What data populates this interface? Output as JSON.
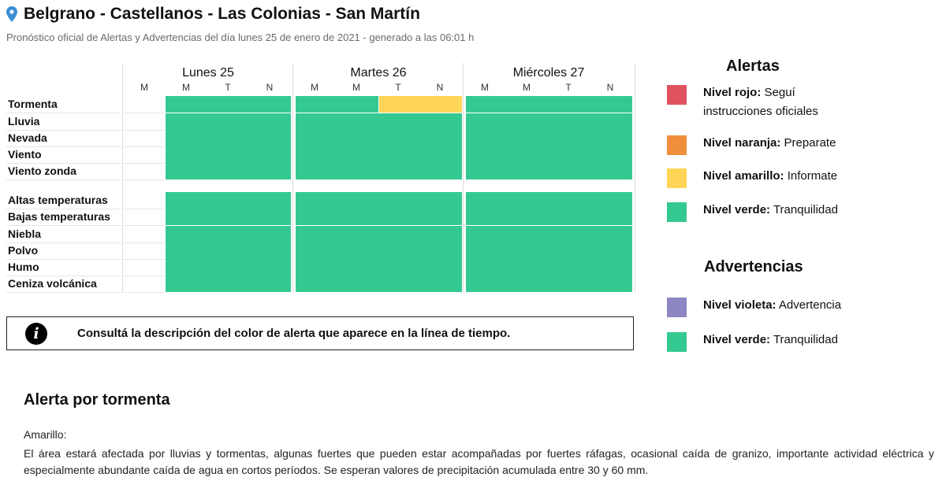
{
  "header": {
    "title": "Belgrano - Castellanos - Las Colonias - San Martín",
    "subtitle": "Pronóstico oficial de Alertas y Advertencias del día lunes 25 de enero de 2021 - generado a las 06:01 h"
  },
  "grid": {
    "days": [
      {
        "label": "Lunes 25",
        "periods": [
          "M",
          "M",
          "T",
          "N"
        ]
      },
      {
        "label": "Martes 26",
        "periods": [
          "M",
          "M",
          "T",
          "N"
        ]
      },
      {
        "label": "Miércoles 27",
        "periods": [
          "M",
          "M",
          "T",
          "N"
        ]
      }
    ],
    "rows": [
      {
        "label": "Tormenta",
        "cells": [
          "none",
          "green",
          "green",
          "green",
          "green",
          "green",
          "yellow",
          "yellow",
          "green",
          "green",
          "green",
          "green"
        ]
      },
      {
        "label": "Lluvia",
        "cells": [
          "none",
          "green",
          "green",
          "green",
          "green",
          "green",
          "green",
          "green",
          "green",
          "green",
          "green",
          "green"
        ]
      },
      {
        "label": "Nevada",
        "cells": [
          "none",
          "green",
          "green",
          "green",
          "green",
          "green",
          "green",
          "green",
          "green",
          "green",
          "green",
          "green"
        ]
      },
      {
        "label": "Viento",
        "cells": [
          "none",
          "green",
          "green",
          "green",
          "green",
          "green",
          "green",
          "green",
          "green",
          "green",
          "green",
          "green"
        ]
      },
      {
        "label": "Viento zonda",
        "cells": [
          "none",
          "green",
          "green",
          "green",
          "green",
          "green",
          "green",
          "green",
          "green",
          "green",
          "green",
          "green"
        ]
      },
      {
        "label": "Altas temperaturas",
        "cells": [
          "none",
          "green",
          "green",
          "green",
          "green",
          "green",
          "green",
          "green",
          "green",
          "green",
          "green",
          "green"
        ]
      },
      {
        "label": "Bajas temperaturas",
        "cells": [
          "none",
          "green",
          "green",
          "green",
          "green",
          "green",
          "green",
          "green",
          "green",
          "green",
          "green",
          "green"
        ]
      },
      {
        "label": "Niebla",
        "cells": [
          "none",
          "green",
          "green",
          "green",
          "green",
          "green",
          "green",
          "green",
          "green",
          "green",
          "green",
          "green"
        ]
      },
      {
        "label": "Polvo",
        "cells": [
          "none",
          "green",
          "green",
          "green",
          "green",
          "green",
          "green",
          "green",
          "green",
          "green",
          "green",
          "green"
        ]
      },
      {
        "label": "Humo",
        "cells": [
          "none",
          "green",
          "green",
          "green",
          "green",
          "green",
          "green",
          "green",
          "green",
          "green",
          "green",
          "green"
        ]
      },
      {
        "label": "Ceniza volcánica",
        "cells": [
          "none",
          "green",
          "green",
          "green",
          "green",
          "green",
          "green",
          "green",
          "green",
          "green",
          "green",
          "green"
        ]
      }
    ]
  },
  "colors": {
    "green": "#35c992",
    "yellow": "#fed556",
    "red": "#e0525f",
    "orange": "#ef8f3c",
    "violet": "#8c86c2"
  },
  "info": {
    "icon": "info-icon",
    "text": "Consultá la descripción del color de alerta que aparece en la línea de tiempo."
  },
  "legend": {
    "alerts_title": "Alertas",
    "alerts": [
      {
        "color": "red",
        "name": "Nivel rojo:",
        "desc": "Seguí instrucciones oficiales"
      },
      {
        "color": "orange",
        "name": "Nivel naranja:",
        "desc": "Preparate"
      },
      {
        "color": "yellow",
        "name": "Nivel amarillo:",
        "desc": "Informate"
      },
      {
        "color": "green",
        "name": "Nivel verde:",
        "desc": "Tranquilidad"
      }
    ],
    "warnings_title": "Advertencias",
    "warnings": [
      {
        "color": "violet",
        "name": "Nivel violeta:",
        "desc": "Advertencia"
      },
      {
        "color": "green",
        "name": "Nivel verde:",
        "desc": "Tranquilidad"
      }
    ]
  },
  "detail": {
    "title": "Alerta por tormenta",
    "level": "Amarillo:",
    "description": "El área estará afectada por lluvias y tormentas, algunas fuertes que pueden estar acompañadas por fuertes ráfagas, ocasional caída de granizo, importante actividad eléctrica y especialmente abundante caída de agua en cortos períodos. Se esperan valores de precipitación acumulada entre 30 y 60 mm."
  }
}
